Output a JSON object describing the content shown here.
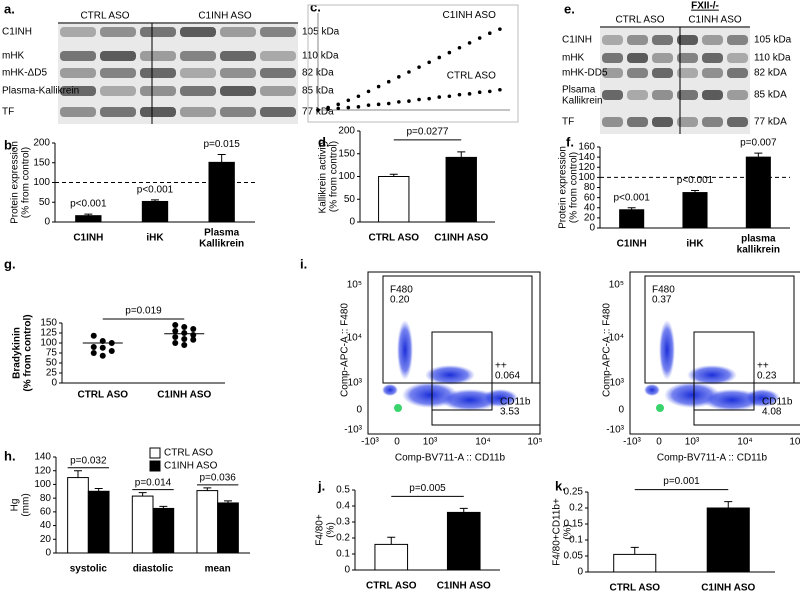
{
  "blots": [
    {
      "panel": "a.",
      "groups": [
        "CTRL ASO",
        "C1INH ASO"
      ],
      "rows": [
        {
          "label": "C1INH",
          "size": "105 kDa"
        },
        {
          "label": "mHK",
          "size": "110 kDa"
        },
        {
          "label": "mHK-ΔD5",
          "size": "82 kDa"
        },
        {
          "label": "Plasma-Kallikrein",
          "size": "85 kDa"
        },
        {
          "label": "TF",
          "size": "77 kDa"
        }
      ]
    },
    {
      "panel": "e.",
      "title": "FXII-/-",
      "groups": [
        "CTRL ASO",
        "C1INH ASO"
      ],
      "rows": [
        {
          "label": "C1INH",
          "size": "105 kDa"
        },
        {
          "label": "mHK",
          "size": "110 kDa"
        },
        {
          "label": "mHK-DD5",
          "size": "82 kDA"
        },
        {
          "label": "Plsama Kallikrein",
          "size": "85 kDA"
        },
        {
          "label": "TF",
          "size": "77 kDA"
        }
      ]
    }
  ],
  "flow": {
    "panel": "i.",
    "ylabel": "Comp-APC-A :: F480",
    "xlabel": "Comp-BV711-A :: CD11b",
    "yticks": [
      "10⁵",
      "10⁴",
      "10³",
      "0",
      "-10³"
    ],
    "xticks": [
      "-10³",
      "0",
      "10³",
      "10⁴",
      "10⁵"
    ],
    "plots": [
      {
        "gates": [
          {
            "name": "F480",
            "value": "0.20"
          },
          {
            "name": "++",
            "value": "0.064"
          },
          {
            "name": "CD11b",
            "value": "3.53"
          }
        ]
      },
      {
        "gates": [
          {
            "name": "F480",
            "value": "0.37"
          },
          {
            "name": "++",
            "value": "0.23"
          },
          {
            "name": "CD11b",
            "value": "4.08"
          }
        ]
      }
    ]
  },
  "chart_data": [
    {
      "type": "bar",
      "panel": "b.",
      "ylabel": "Protein expression (% from control)",
      "categories": [
        "C1INH",
        "iHK",
        "Plasma Kallikrein"
      ],
      "values": [
        16,
        52,
        151
      ],
      "errors": [
        4,
        4,
        20
      ],
      "color": "#000000",
      "value_annotations": [
        "p<0.001",
        "p<0.001",
        "p=0.015"
      ],
      "reference_line": 100,
      "ylim": [
        0,
        200
      ],
      "yticks": [
        0,
        50,
        100,
        150,
        200
      ]
    },
    {
      "type": "line",
      "panel": "c.",
      "x": [
        0,
        100,
        200,
        300,
        400,
        500,
        600,
        700,
        800,
        900,
        1000,
        1100,
        1200,
        1300,
        1400,
        1500,
        1600,
        1700,
        1800
      ],
      "series": [
        {
          "name": "C1INH ASO",
          "color": "#000000",
          "values": [
            0,
            0.03,
            0.07,
            0.12,
            0.17,
            0.23,
            0.29,
            0.35,
            0.41,
            0.47,
            0.53,
            0.59,
            0.65,
            0.71,
            0.77,
            0.83,
            0.89,
            0.95,
            1.0
          ]
        },
        {
          "name": "CTRL ASO",
          "color": "#000000",
          "values": [
            0,
            0.01,
            0.02,
            0.03,
            0.04,
            0.06,
            0.07,
            0.08,
            0.1,
            0.11,
            0.13,
            0.14,
            0.16,
            0.17,
            0.19,
            0.2,
            0.22,
            0.23,
            0.25
          ]
        }
      ],
      "xlim": [
        0,
        1900
      ],
      "ylim": [
        0,
        1.2
      ]
    },
    {
      "type": "bar",
      "panel": "d.",
      "ylabel": "Kallikrein activity (% from control)",
      "categories": [
        "CTRL ASO",
        "C1INH ASO"
      ],
      "values": [
        100,
        142
      ],
      "errors": [
        5,
        12
      ],
      "colors": [
        "#ffffff",
        "#000000"
      ],
      "bracket_label": "p=0.0277",
      "ylim": [
        0,
        200
      ],
      "yticks": [
        0,
        50,
        100,
        150,
        200
      ]
    },
    {
      "type": "bar",
      "panel": "f.",
      "ylabel": "Protein expression (% from control)",
      "categories": [
        "C1INH",
        "iHK",
        "plasma kallikrein"
      ],
      "values": [
        36,
        70,
        140
      ],
      "errors": [
        4,
        4,
        8
      ],
      "color": "#000000",
      "value_annotations": [
        "p<0.001",
        "p<0.001",
        "p=0.007"
      ],
      "reference_line": 100,
      "ylim": [
        0,
        160
      ],
      "yticks": [
        0,
        20,
        40,
        60,
        80,
        100,
        120,
        140,
        160
      ]
    },
    {
      "type": "strip",
      "panel": "g.",
      "ylabel": "Bradykinin (% from control)",
      "categories": [
        "CTRL ASO",
        "C1INH ASO"
      ],
      "points": [
        [
          118,
          105,
          100,
          90,
          88,
          80,
          75,
          68
        ],
        [
          145,
          140,
          135,
          130,
          125,
          120,
          115,
          110,
          108,
          100,
          95
        ]
      ],
      "means": [
        100,
        123
      ],
      "bracket_label": "p=0.019",
      "ylim": [
        0,
        150
      ],
      "yticks": [
        0,
        25,
        50,
        75,
        100,
        125,
        150
      ]
    },
    {
      "type": "bar",
      "panel": "h.",
      "ylabel": "Hg (mm)",
      "categories": [
        "systolic",
        "diastolic",
        "mean"
      ],
      "series": [
        {
          "name": "CTRL ASO",
          "color": "#ffffff",
          "values": [
            110,
            83,
            91
          ],
          "errors": [
            10,
            5,
            4
          ]
        },
        {
          "name": "C1INH ASO",
          "color": "#000000",
          "values": [
            90,
            65,
            73
          ],
          "errors": [
            4,
            3,
            3
          ]
        }
      ],
      "group_annotations": [
        "p=0.032",
        "p=0.014",
        "p=0.036"
      ],
      "ylim": [
        0,
        140
      ],
      "yticks": [
        0,
        20,
        40,
        60,
        80,
        100,
        120,
        140
      ]
    },
    {
      "type": "bar",
      "panel": "j.",
      "ylabel": "F4/80+ (%)",
      "categories": [
        "CTRL ASO",
        "C1INH ASO"
      ],
      "values": [
        0.16,
        0.36
      ],
      "errors": [
        0.045,
        0.025
      ],
      "colors": [
        "#ffffff",
        "#000000"
      ],
      "bracket_label": "p=0.005",
      "ylim": [
        0,
        0.5
      ],
      "yticks": [
        0,
        0.1,
        0.2,
        0.3,
        0.4,
        0.5
      ]
    },
    {
      "type": "bar",
      "panel": "k.",
      "ylabel": "F4/80+CD11b+ (%)",
      "categories": [
        "CTRL ASO",
        "C1INH ASO"
      ],
      "values": [
        0.055,
        0.2
      ],
      "errors": [
        0.022,
        0.02
      ],
      "colors": [
        "#ffffff",
        "#000000"
      ],
      "bracket_label": "p=0.001",
      "ylim": [
        0,
        0.25
      ],
      "yticks": [
        0,
        0.05,
        0.1,
        0.15,
        0.2,
        0.25
      ]
    }
  ]
}
